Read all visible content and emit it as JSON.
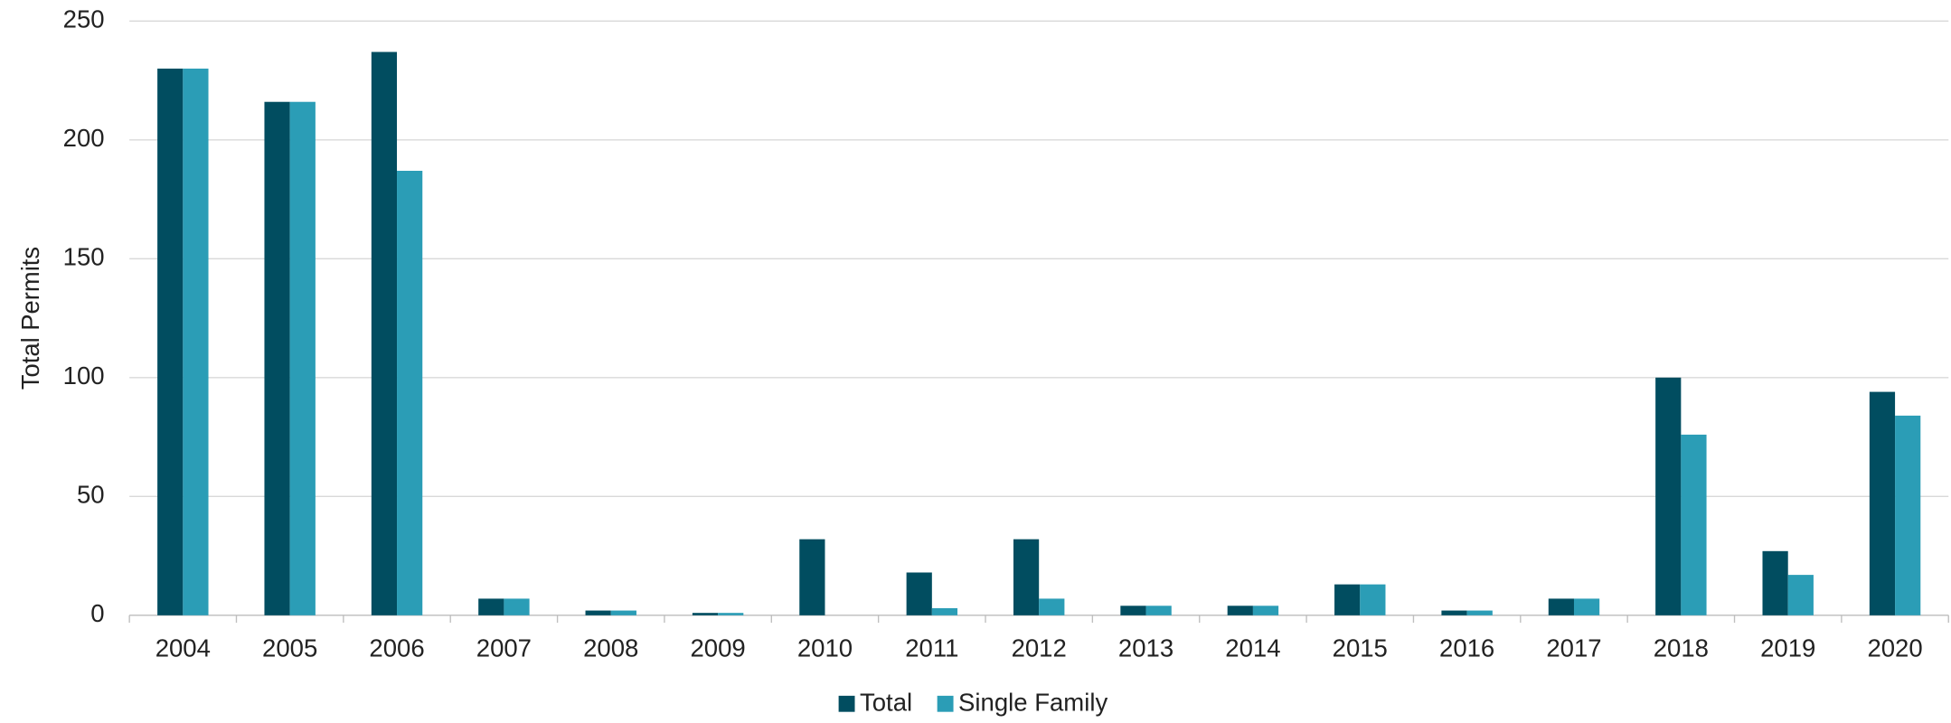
{
  "chart_data": {
    "type": "bar",
    "y_label": "Total Permits",
    "categories": [
      "2004",
      "2005",
      "2006",
      "2007",
      "2008",
      "2009",
      "2010",
      "2011",
      "2012",
      "2013",
      "2014",
      "2015",
      "2016",
      "2017",
      "2018",
      "2019",
      "2020"
    ],
    "series": [
      {
        "name": "Total",
        "color": "#014d60",
        "values": [
          230,
          216,
          237,
          7,
          2,
          1,
          32,
          18,
          32,
          4,
          4,
          13,
          2,
          7,
          100,
          27,
          94
        ]
      },
      {
        "name": "Single Family",
        "color": "#2b9db6",
        "values": [
          230,
          216,
          187,
          7,
          2,
          1,
          0,
          3,
          7,
          4,
          4,
          13,
          2,
          7,
          76,
          17,
          84
        ]
      }
    ],
    "ylim": [
      0,
      250
    ],
    "yticks": [
      0,
      50,
      100,
      150,
      200,
      250
    ],
    "grid": true,
    "legend": "bottom"
  }
}
